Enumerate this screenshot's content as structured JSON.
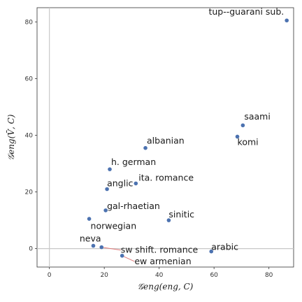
{
  "chart_data": {
    "type": "scatter",
    "xlabel": "𝒢eng(eng, C)",
    "ylabel": "𝒢eng(V̄, C)",
    "xlim": [
      -4.5,
      89
    ],
    "ylim": [
      -6.5,
      85
    ],
    "xticks": [
      "0",
      "20",
      "40",
      "60",
      "80"
    ],
    "xtick_values": [
      0,
      20,
      40,
      60,
      80
    ],
    "yticks": [
      "0",
      "20",
      "40",
      "60",
      "80"
    ],
    "ytick_values": [
      0,
      20,
      40,
      60,
      80
    ],
    "reference_lines": {
      "x": 0,
      "y": 0
    },
    "grid": false,
    "point_color": "#4c72b0",
    "reference_color": "#c8c8c8",
    "connector_color": "#e07a7a",
    "points": [
      {
        "label": "tup--guarani sub.",
        "x": 86.5,
        "y": 80.5,
        "lx": 85.5,
        "ly": 82.5,
        "anchor": "end"
      },
      {
        "label": "saami",
        "x": 70.5,
        "y": 43.5,
        "lx": 71,
        "ly": 45.5,
        "anchor": "start"
      },
      {
        "label": "komi",
        "x": 68.5,
        "y": 39.5,
        "lx": 68.5,
        "ly": 36.5,
        "anchor": "start"
      },
      {
        "label": "albanian",
        "x": 35.0,
        "y": 35.5,
        "lx": 35.5,
        "ly": 37.0,
        "anchor": "start"
      },
      {
        "label": "h. german",
        "x": 22.0,
        "y": 28.0,
        "lx": 22.5,
        "ly": 29.5,
        "anchor": "start"
      },
      {
        "label": "ita. romance",
        "x": 31.5,
        "y": 23.0,
        "lx": 32.5,
        "ly": 24.0,
        "anchor": "start"
      },
      {
        "label": "anglic",
        "x": 21.0,
        "y": 21.0,
        "lx": 21.0,
        "ly": 22.0,
        "anchor": "start"
      },
      {
        "label": "gal-rhaetian",
        "x": 20.5,
        "y": 13.5,
        "lx": 21.0,
        "ly": 14.0,
        "anchor": "start"
      },
      {
        "label": "sinitic",
        "x": 43.5,
        "y": 10.0,
        "lx": 43.5,
        "ly": 11.0,
        "anchor": "start"
      },
      {
        "label": "norwegian",
        "x": 14.5,
        "y": 10.5,
        "lx": 15.0,
        "ly": 7.0,
        "anchor": "start"
      },
      {
        "label": "neva",
        "x": 16.0,
        "y": 1.0,
        "lx": 11.0,
        "ly": 2.5,
        "anchor": "start"
      },
      {
        "label": "sw shift. romance",
        "x": 19.0,
        "y": 0.5,
        "lx": 26.0,
        "ly": -1.5,
        "anchor": "start",
        "connector": true
      },
      {
        "label": "ew armenian",
        "x": 26.5,
        "y": -2.5,
        "lx": 31.0,
        "ly": -5.5,
        "anchor": "start",
        "connector": true
      },
      {
        "label": "arabic",
        "x": 59.0,
        "y": -1.0,
        "lx": 59.0,
        "ly": -0.5,
        "anchor": "start"
      }
    ]
  }
}
